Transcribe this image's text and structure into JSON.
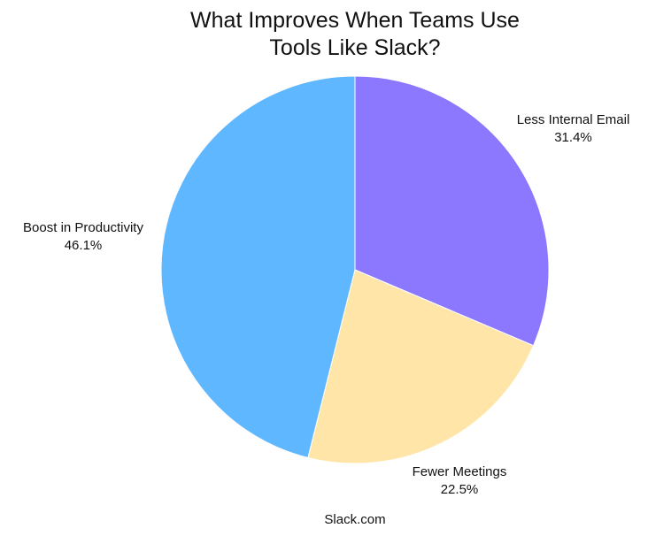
{
  "chart_data": {
    "type": "pie",
    "title": "What Improves When Teams Use Tools Like Slack?",
    "title_lines": [
      "What Improves When Teams Use",
      "Tools Like Slack?"
    ],
    "slices": [
      {
        "label": "Less Internal Email",
        "value": 31.4,
        "display": "31.4%",
        "color": "#8c78ff"
      },
      {
        "label": "Fewer Meetings",
        "value": 22.5,
        "display": "22.5%",
        "color": "#ffe6a8"
      },
      {
        "label": "Boost in Productivity",
        "value": 46.1,
        "display": "46.1%",
        "color": "#5fb8ff"
      }
    ],
    "start_angle": "12 o'clock",
    "direction": "clockwise",
    "source": "Slack.com"
  }
}
